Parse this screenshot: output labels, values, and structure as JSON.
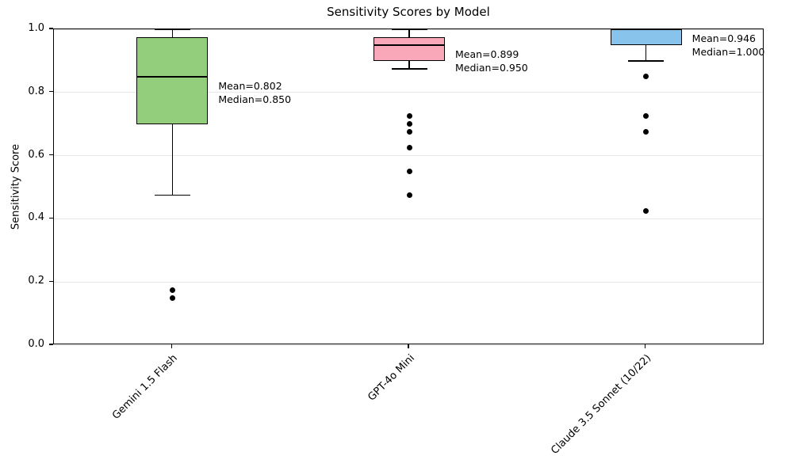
{
  "title": "Sensitivity Scores by Model",
  "chart_data": {
    "type": "boxplot",
    "title": "Sensitivity Scores by Model",
    "xlabel": "",
    "ylabel": "Sensitivity Score",
    "ylim": [
      0.0,
      1.0
    ],
    "yticks": [
      0.0,
      0.2,
      0.4,
      0.6,
      0.8,
      1.0
    ],
    "ytick_labels": [
      "0.0",
      "0.2",
      "0.4",
      "0.6",
      "0.8",
      "1.0"
    ],
    "grid": "horizontal",
    "legend": "none",
    "categories": [
      "Gemini 1.5 Flash",
      "GPT-4o Mini",
      "Claude 3.5 Sonnet (10/22)"
    ],
    "series": [
      {
        "name": "Gemini 1.5 Flash",
        "fill_color": "#93ce7d",
        "edge_color": "#000000",
        "whisker_low": 0.475,
        "q1": 0.7,
        "median": 0.85,
        "q3": 0.975,
        "whisker_high": 1.0,
        "mean": 0.802,
        "outliers": [
          0.175,
          0.15
        ],
        "annotation": {
          "mean_label": "Mean=0.802",
          "median_label": "Median=0.850"
        }
      },
      {
        "name": "GPT-4o Mini",
        "fill_color": "#f9a8ba",
        "edge_color": "#000000",
        "whisker_low": 0.875,
        "q1": 0.9,
        "median": 0.95,
        "q3": 0.975,
        "whisker_high": 1.0,
        "mean": 0.899,
        "outliers": [
          0.725,
          0.7,
          0.675,
          0.625,
          0.55,
          0.475
        ],
        "annotation": {
          "mean_label": "Mean=0.899",
          "median_label": "Median=0.950"
        }
      },
      {
        "name": "Claude 3.5 Sonnet (10/22)",
        "fill_color": "#87c3eb",
        "edge_color": "#000000",
        "whisker_low": 0.9,
        "q1": 0.95,
        "median": 1.0,
        "q3": 1.0,
        "whisker_high": 1.0,
        "mean": 0.946,
        "outliers": [
          0.85,
          0.725,
          0.675,
          0.425
        ],
        "annotation": {
          "mean_label": "Mean=0.946",
          "median_label": "Median=1.000"
        }
      }
    ]
  }
}
